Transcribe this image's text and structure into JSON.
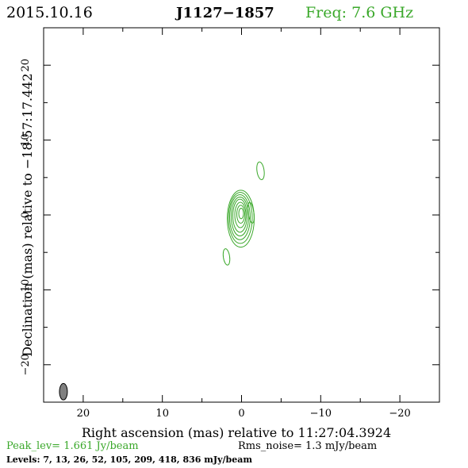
{
  "header": {
    "date": "2015.10.16",
    "source": "J1127−1857",
    "frequency": "Freq: 7.6 GHz"
  },
  "chart_data": {
    "type": "contour",
    "xlabel": "Right ascension (mas) relative to 11:27:04.3924",
    "ylabel": "Declination (mas) relative to −18:57:17.442",
    "xlim": [
      25,
      -25
    ],
    "ylim": [
      -25,
      25
    ],
    "x_ticks": [
      20,
      10,
      0,
      -10,
      -20
    ],
    "y_ticks": [
      20,
      10,
      0,
      -10,
      -20
    ],
    "x_tick_labels": [
      "20",
      "10",
      "0",
      "−10",
      "−20"
    ],
    "y_tick_labels": [
      "20",
      "10",
      "0",
      "−10",
      "−20"
    ],
    "peak_level_text": "Peak_lev=  1.661 Jy/beam",
    "rms_noise_text": "Rms_noise=   1.3 mJy/beam",
    "levels_text": "Levels:    7,   13,   26,   52,  105,  209,  418,  836  mJy/beam",
    "levels_mJy": [
      7,
      13,
      26,
      52,
      105,
      209,
      418,
      836
    ],
    "contour_color": "#3aa82a",
    "beam_color": "#808080",
    "core_contours": [
      {
        "cx": 0.1,
        "cy": -0.5,
        "rx": 1.7,
        "ry": 3.8
      },
      {
        "cx": 0.15,
        "cy": -0.4,
        "rx": 1.5,
        "ry": 3.4
      },
      {
        "cx": 0.2,
        "cy": -0.3,
        "rx": 1.3,
        "ry": 3.0
      },
      {
        "cx": 0.2,
        "cy": -0.2,
        "rx": 1.1,
        "ry": 2.6
      },
      {
        "cx": 0.2,
        "cy": -0.1,
        "rx": 0.9,
        "ry": 2.2
      },
      {
        "cx": 0.15,
        "cy": 0.0,
        "rx": 0.7,
        "ry": 1.7
      },
      {
        "cx": 0.1,
        "cy": 0.1,
        "rx": 0.5,
        "ry": 1.2
      },
      {
        "cx": 0.05,
        "cy": 0.2,
        "rx": 0.3,
        "ry": 0.7
      }
    ],
    "components": [
      {
        "cx": -1.2,
        "cy": 0.3,
        "rx": 0.35,
        "ry": 1.4
      },
      {
        "cx": -2.4,
        "cy": 5.9,
        "rx": 0.45,
        "ry": 1.2
      },
      {
        "cx": 1.9,
        "cy": -5.6,
        "rx": 0.4,
        "ry": 1.1
      }
    ],
    "beam": {
      "cx": 22.5,
      "cy": -23.6,
      "rx": 0.5,
      "ry": 1.1
    }
  }
}
